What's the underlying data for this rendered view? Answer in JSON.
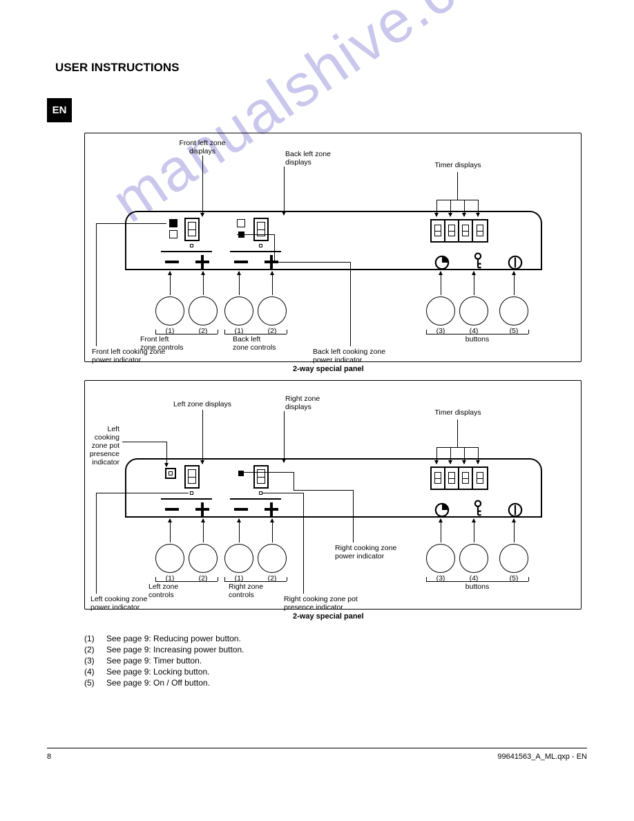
{
  "header": {
    "title": "USER INSTRUCTIONS",
    "lang": "EN"
  },
  "panels": {
    "p1": {
      "caption": "2-way special panel",
      "labels": {
        "zone_front_left": "Front left\nzone controls",
        "zone_back_left_display": "Back left zone\ndisplays",
        "zone_back_left_controls": "Back left\nzone controls",
        "timer_displays": "Timer displays",
        "zone_front_left_display": "Front left zone\ndisplays",
        "minus1": "(1)",
        "plus1": "(2)",
        "minus2": "(1)",
        "plus2": "(2)",
        "timer_btn": "(3)",
        "lock_btn": "(4)",
        "power_btn": "(5)",
        "btn_generic": "buttons",
        "ind_front_left": "Front left cooking zone\npower indicator",
        "ind_back_left": "Back left cooking zone\npower indicator"
      }
    },
    "p2": {
      "caption": "2-way special panel",
      "labels": {
        "zone_left": "Left zone\ncontrols",
        "zone_left_display": "Left zone displays",
        "zone_right_display": "Right zone\ndisplays",
        "zone_right_controls": "Right zone\ncontrols",
        "timer_displays": "Timer displays",
        "minus1": "(1)",
        "plus1": "(2)",
        "minus2": "(1)",
        "plus2": "(2)",
        "timer_btn": "(3)",
        "lock_btn": "(4)",
        "power_btn": "(5)",
        "btn_generic": "buttons",
        "ind_left_present": "Left cooking zone pot\npresence indicator",
        "ind_right_power": "Right cooking zone\npower indicator",
        "ind_left_power": "Left cooking zone\npower indicator",
        "ind_right_present": "Right cooking zone pot\npresence indicator"
      }
    }
  },
  "footnotes": [
    {
      "n": "(1)",
      "text": "See page 9: Reducing power button."
    },
    {
      "n": "(2)",
      "text": "See page 9: Increasing power button."
    },
    {
      "n": "(3)",
      "text": "See page 9: Timer button."
    },
    {
      "n": "(4)",
      "text": "See page 9: Locking button."
    },
    {
      "n": "(5)",
      "text": "See page 9: On / Off button."
    }
  ],
  "footer": {
    "page": "8",
    "model": "99641563_A_ML.qxp  -  EN"
  },
  "watermark": "manualshive.com",
  "style": {
    "page_bg": "#ffffff",
    "ink": "#000000",
    "watermark_color": "rgba(90,80,200,0.32)",
    "font_family": "Arial, Helvetica, sans-serif"
  }
}
